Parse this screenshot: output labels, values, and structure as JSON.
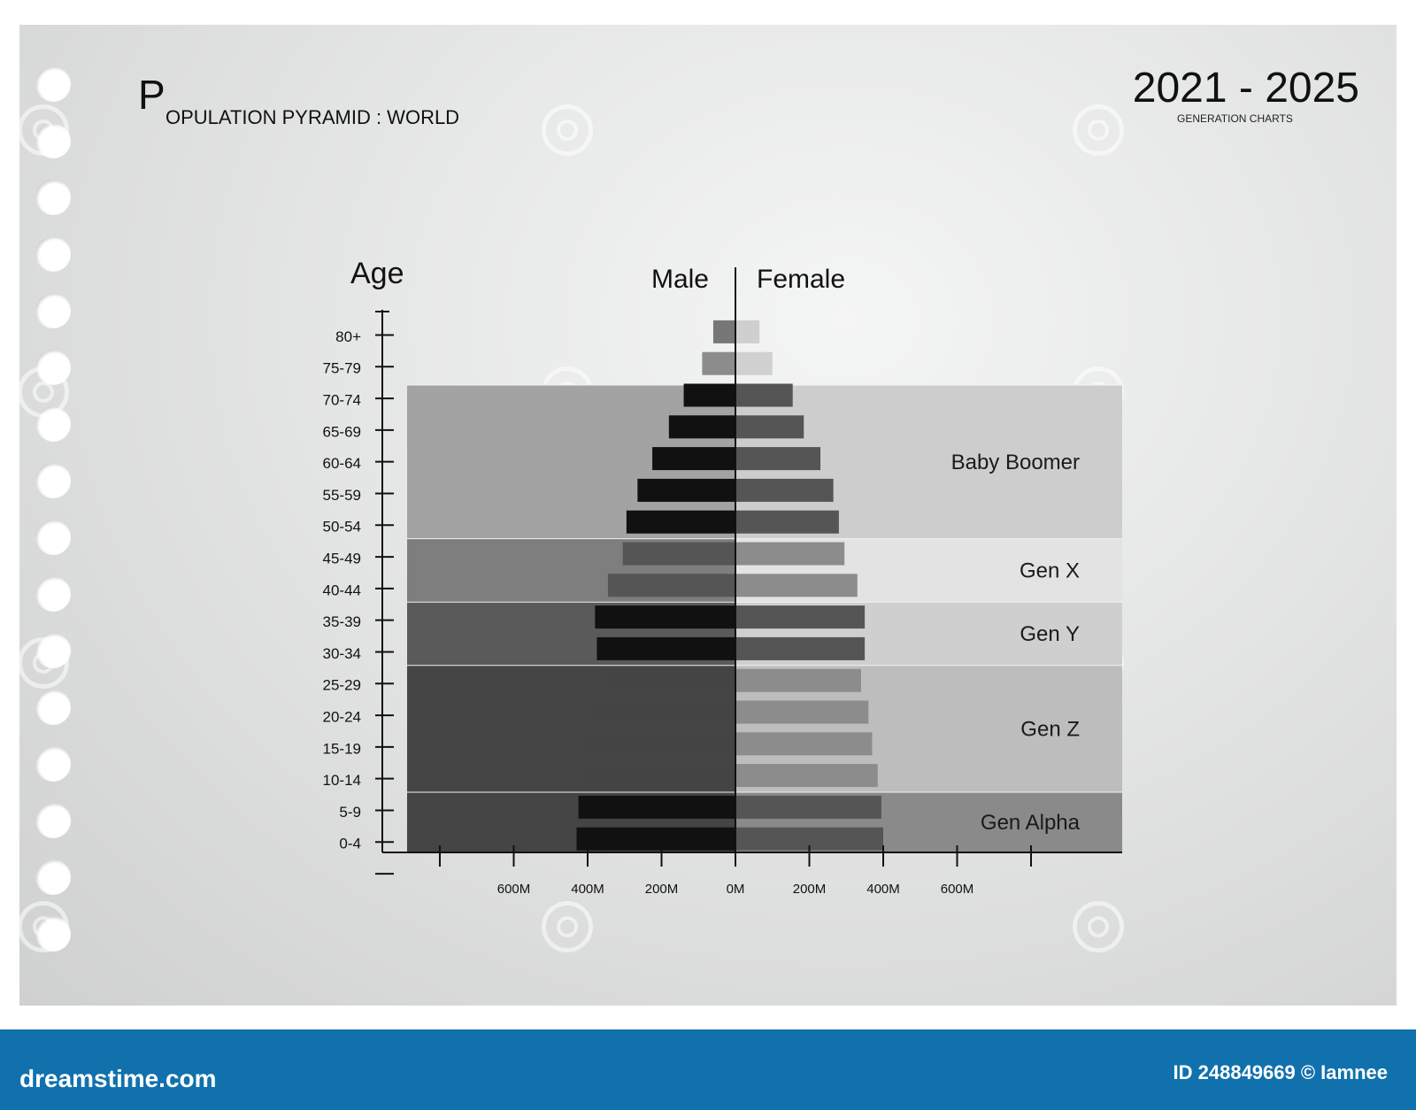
{
  "header": {
    "title_initial": "P",
    "title_rest": "OPULATION PYRAMID : WORLD",
    "years": "2021 - 2025",
    "subtitle": "GENERATION CHARTS"
  },
  "footer": {
    "brand": "dreamstime.com",
    "image_id": "ID 248849669 © Iamnee"
  },
  "chart_data": {
    "type": "bar",
    "orientation": "horizontal-pyramid",
    "ylabel": "Age",
    "categories": [
      "80+",
      "75-79",
      "70-74",
      "65-69",
      "60-64",
      "55-59",
      "50-54",
      "45-49",
      "40-44",
      "35-39",
      "30-34",
      "25-29",
      "20-24",
      "15-19",
      "10-14",
      "5-9",
      "0-4"
    ],
    "series": [
      {
        "name": "Male",
        "values": [
          60,
          90,
          140,
          180,
          225,
          265,
          295,
          305,
          345,
          380,
          375,
          360,
          385,
          415,
          425,
          425,
          430
        ],
        "colors": [
          "#777777",
          "#8c8c8c",
          "#111111",
          "#111111",
          "#111111",
          "#111111",
          "#111111",
          "#555555",
          "#555555",
          "#111111",
          "#111111",
          "#444444",
          "#444444",
          "#444444",
          "#444444",
          "#111111",
          "#111111"
        ]
      },
      {
        "name": "Female",
        "values": [
          65,
          100,
          155,
          185,
          230,
          265,
          280,
          295,
          330,
          350,
          350,
          340,
          360,
          370,
          385,
          395,
          400
        ],
        "colors": [
          "#cfcfcf",
          "#d0d0d0",
          "#555555",
          "#555555",
          "#555555",
          "#555555",
          "#555555",
          "#8c8c8c",
          "#8c8c8c",
          "#555555",
          "#555555",
          "#8c8c8c",
          "#8c8c8c",
          "#8c8c8c",
          "#8c8c8c",
          "#555555",
          "#555555"
        ]
      }
    ],
    "x_ticks": [
      "600M",
      "400M",
      "200M",
      "0M",
      "200M",
      "400M",
      "600M"
    ],
    "x_tick_values": [
      -600,
      -400,
      -200,
      0,
      200,
      400,
      600
    ],
    "generations": [
      {
        "name": "Baby Boomer",
        "from": "70-74",
        "to": "50-54",
        "left_color": "#a3a3a3",
        "right_color": "#cdcdcd"
      },
      {
        "name": "Gen X",
        "from": "45-49",
        "to": "40-44",
        "left_color": "#7e7e7e",
        "right_color": "#e3e3e3"
      },
      {
        "name": "Gen Y",
        "from": "35-39",
        "to": "30-34",
        "left_color": "#5a5a5a",
        "right_color": "#cfcfcf"
      },
      {
        "name": "Gen Z",
        "from": "25-29",
        "to": "10-14",
        "left_color": "#454545",
        "right_color": "#bdbdbd"
      },
      {
        "name": "Gen Alpha",
        "from": "5-9",
        "to": "0-4",
        "left_color": "#454545",
        "right_color": "#8a8a8a"
      }
    ]
  }
}
